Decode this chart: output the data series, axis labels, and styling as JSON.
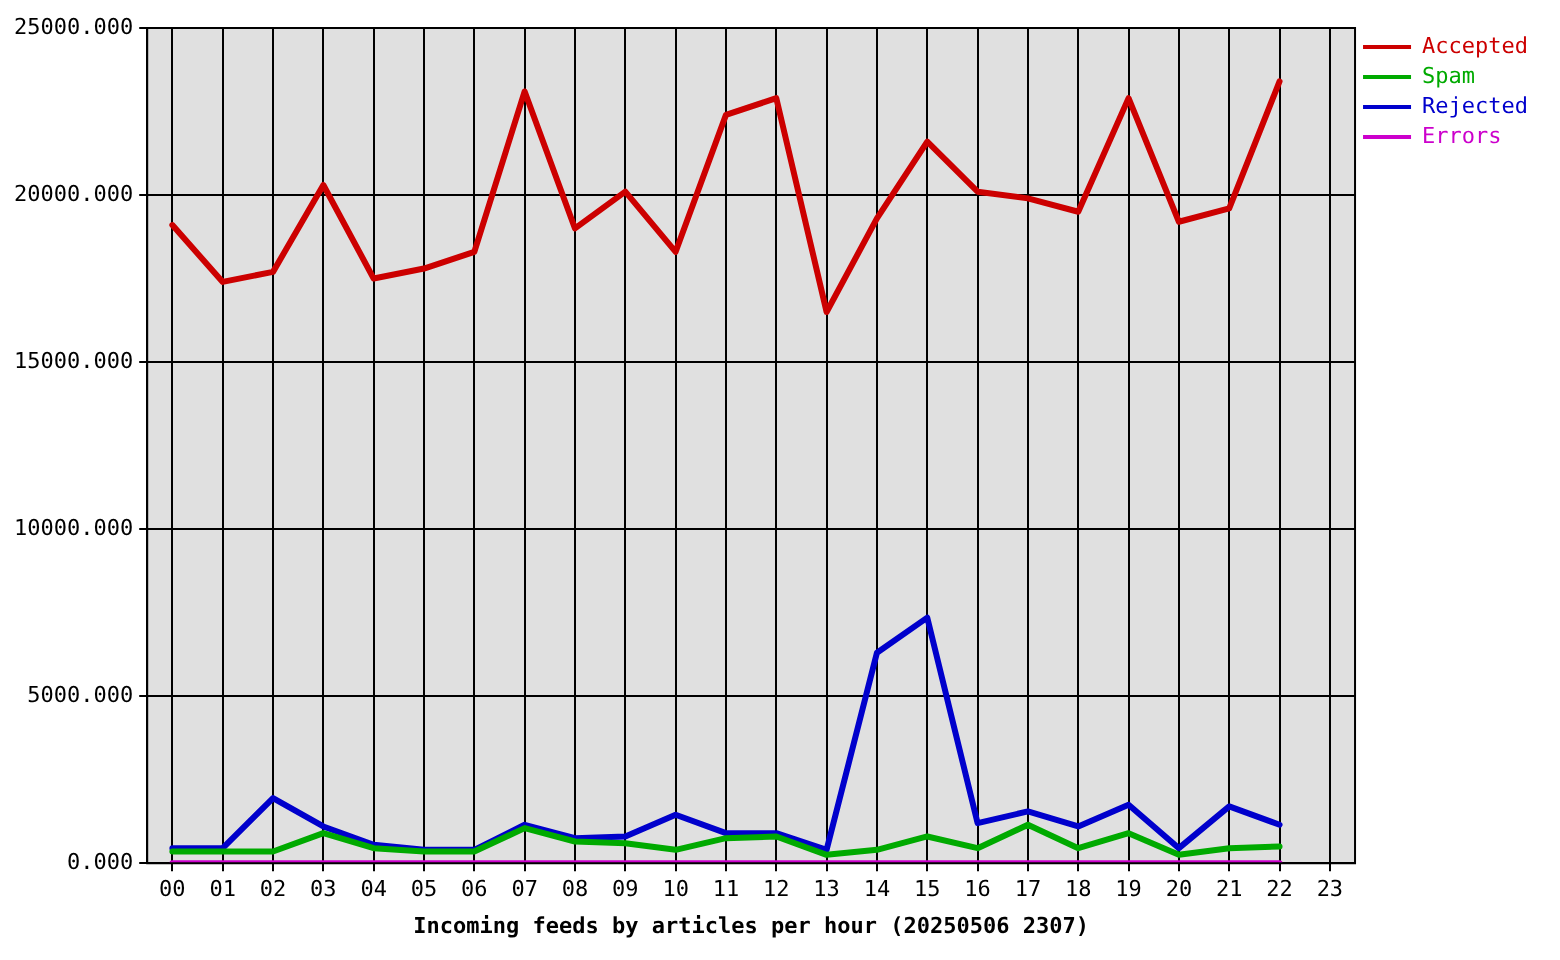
{
  "chart_data": {
    "type": "line",
    "xlabel": "Incoming feeds by articles per hour (20250506 2307)",
    "categories": [
      "00",
      "01",
      "02",
      "03",
      "04",
      "05",
      "06",
      "07",
      "08",
      "09",
      "10",
      "11",
      "12",
      "13",
      "14",
      "15",
      "16",
      "17",
      "18",
      "19",
      "20",
      "21",
      "22",
      "23"
    ],
    "series": [
      {
        "name": "Accepted",
        "color": "#cc0000",
        "values": [
          19100,
          17400,
          17700,
          20300,
          17500,
          17800,
          18300,
          23100,
          19000,
          20100,
          18300,
          22400,
          22900,
          16500,
          19300,
          21600,
          20100,
          19900,
          19500,
          22900,
          19200,
          19600,
          23400,
          null
        ]
      },
      {
        "name": "Spam",
        "color": "#00aa00",
        "values": [
          350,
          350,
          350,
          900,
          450,
          350,
          350,
          1050,
          650,
          600,
          400,
          750,
          800,
          250,
          400,
          800,
          450,
          1150,
          450,
          900,
          250,
          450,
          500,
          null
        ]
      },
      {
        "name": "Rejected",
        "color": "#0000cc",
        "values": [
          450,
          450,
          1950,
          1100,
          550,
          400,
          400,
          1150,
          750,
          800,
          1450,
          900,
          900,
          400,
          6300,
          7350,
          1200,
          1550,
          1100,
          1750,
          450,
          1700,
          1150,
          null
        ]
      },
      {
        "name": "Errors",
        "color": "#cc00cc",
        "values": [
          0,
          0,
          0,
          0,
          0,
          0,
          0,
          0,
          0,
          0,
          0,
          0,
          0,
          0,
          0,
          0,
          0,
          0,
          0,
          0,
          0,
          0,
          0,
          null
        ]
      }
    ],
    "ylim": [
      0,
      25000
    ],
    "yticks": [
      {
        "value": 0,
        "label": "0.000"
      },
      {
        "value": 5000,
        "label": "5000.000"
      },
      {
        "value": 10000,
        "label": "10000.000"
      },
      {
        "value": 15000,
        "label": "15000.000"
      },
      {
        "value": 20000,
        "label": "20000.000"
      },
      {
        "value": 25000,
        "label": "25000.000"
      }
    ],
    "grid": true,
    "legend": "top right",
    "line_style": "solid"
  }
}
